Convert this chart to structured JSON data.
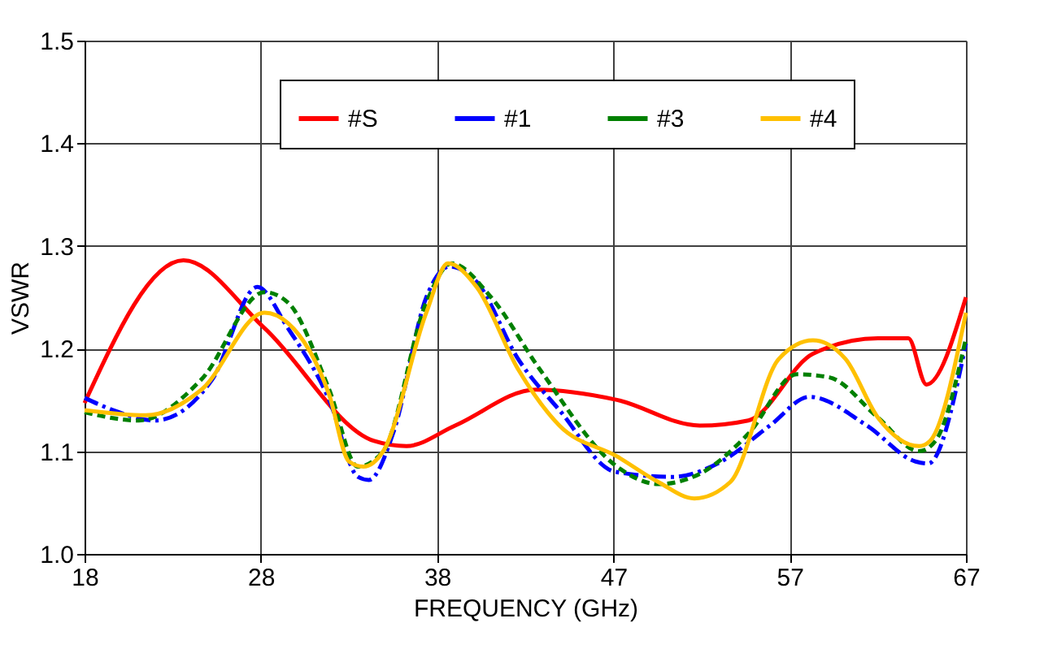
{
  "chart_data": {
    "type": "line",
    "xlabel": "FREQUENCY (GHz)",
    "ylabel": "VSWR",
    "xlim": [
      18,
      67
    ],
    "xticks": [
      18,
      {
        "value": 27.8,
        "label": "28"
      },
      {
        "value": 37.6,
        "label": "38"
      },
      {
        "value": 47.4,
        "label": "47"
      },
      {
        "value": 57.2,
        "label": "57"
      },
      67
    ],
    "ylim": [
      1.0,
      1.5
    ],
    "yticks": [
      {
        "value": 1.0,
        "label": "1.0"
      },
      1.1,
      1.2,
      1.3,
      1.4,
      1.5
    ],
    "grid": true,
    "legend": "top",
    "marker": "none",
    "series": [
      {
        "name": "#S",
        "color": "#ff0000",
        "line_style": "solid",
        "x": [
          18,
          23.5,
          28,
          34.1,
          35.9,
          38.6,
          43.1,
          47.6,
          52.2,
          54.9,
          58.5,
          62.1,
          63.8,
          64.8,
          67
        ],
        "values": [
          1.147,
          1.286,
          1.22,
          1.11,
          1.105,
          1.125,
          1.16,
          1.15,
          1.125,
          1.13,
          1.195,
          1.21,
          1.21,
          1.165,
          1.25
        ]
      },
      {
        "name": "#1",
        "color": "#0000ff",
        "line_style": "dashed",
        "x": [
          18,
          19.6,
          21.9,
          25.1,
          27.6,
          29.3,
          31.6,
          33.2,
          33.8,
          35.2,
          37.0,
          38.3,
          39.8,
          42.1,
          44.4,
          47.5,
          50.7,
          53.4,
          56.1,
          58.3,
          61.5,
          64.2,
          64.9,
          67
        ],
        "values": [
          1.152,
          1.14,
          1.13,
          1.17,
          1.26,
          1.22,
          1.15,
          1.075,
          1.072,
          1.12,
          1.25,
          1.28,
          1.265,
          1.19,
          1.14,
          1.08,
          1.075,
          1.09,
          1.125,
          1.153,
          1.125,
          1.09,
          1.088,
          1.205
        ]
      },
      {
        "name": "#3",
        "color": "#008000",
        "line_style": "dotted",
        "x": [
          18,
          21,
          24.5,
          28,
          29.3,
          31.6,
          33.2,
          34.6,
          37,
          38.4,
          40.6,
          43.3,
          47.6,
          49.9,
          52.2,
          54.9,
          57.6,
          59.4,
          62.1,
          64.4,
          65.3,
          67
        ],
        "values": [
          1.138,
          1.13,
          1.17,
          1.255,
          1.245,
          1.16,
          1.085,
          1.1,
          1.245,
          1.283,
          1.25,
          1.18,
          1.085,
          1.068,
          1.078,
          1.117,
          1.175,
          1.172,
          1.133,
          1.1,
          1.11,
          1.21
        ]
      },
      {
        "name": "#4",
        "color": "#ffc000",
        "line_style": "solid",
        "x": [
          18,
          21.4,
          24.5,
          28,
          29.3,
          31.6,
          32.7,
          33.5,
          34.6,
          37,
          38.2,
          39.8,
          42.1,
          44.4,
          47.6,
          49.9,
          51.9,
          53.9,
          56.6,
          58.5,
          60.3,
          62.1,
          64.4,
          65,
          67
        ],
        "values": [
          1.14,
          1.135,
          1.16,
          1.235,
          1.225,
          1.155,
          1.09,
          1.085,
          1.1,
          1.235,
          1.283,
          1.26,
          1.18,
          1.125,
          1.095,
          1.07,
          1.054,
          1.07,
          1.19,
          1.208,
          1.19,
          1.133,
          1.105,
          1.11,
          1.235
        ]
      }
    ]
  }
}
